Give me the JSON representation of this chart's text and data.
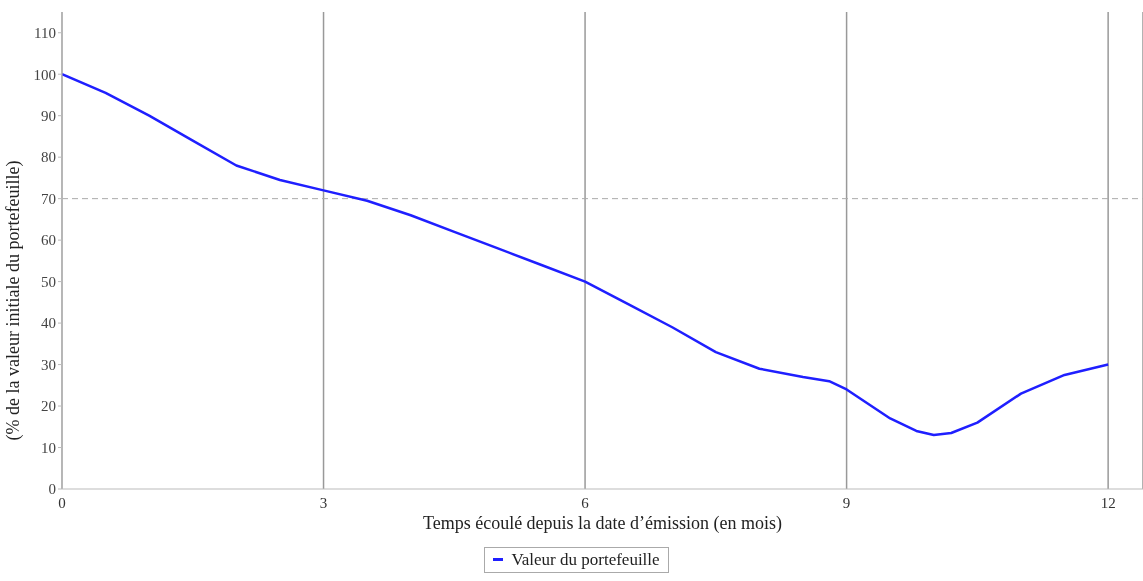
{
  "chart_data": {
    "type": "line",
    "xlabel": "Temps écoulé depuis la date d’émission (en mois)",
    "ylabel": "(% de la valeur initiale du portefeuille)",
    "x": [
      0,
      0.5,
      1,
      1.5,
      2,
      2.5,
      3,
      3.5,
      4,
      4.5,
      5,
      5.5,
      6,
      6.5,
      7,
      7.5,
      8,
      8.5,
      8.8,
      9,
      9.5,
      9.8,
      10,
      10.2,
      10.5,
      11,
      11.5,
      12
    ],
    "series": [
      {
        "name": "Valeur du portefeuille",
        "color": "#1f1fff",
        "values": [
          100,
          95.5,
          90,
          84,
          78,
          74.5,
          72,
          69.5,
          66,
          62,
          58,
          54,
          50,
          44.5,
          39,
          33,
          29,
          27,
          26,
          24,
          17,
          14,
          13,
          13.5,
          16,
          23,
          27.5,
          30
        ]
      }
    ],
    "xlim": [
      0,
      12.4
    ],
    "xticks": [
      0,
      3,
      6,
      9,
      12
    ],
    "ylim": [
      0,
      115
    ],
    "yticks": [
      0,
      10,
      20,
      30,
      40,
      50,
      60,
      70,
      80,
      90,
      100,
      110
    ],
    "grid": "x",
    "legend": "bottom",
    "marker": "none",
    "line_style": "solid",
    "ref_lines": [
      {
        "axis": "y",
        "value": 70,
        "line_style": "dashed",
        "color": "#aaaaaa"
      }
    ]
  }
}
